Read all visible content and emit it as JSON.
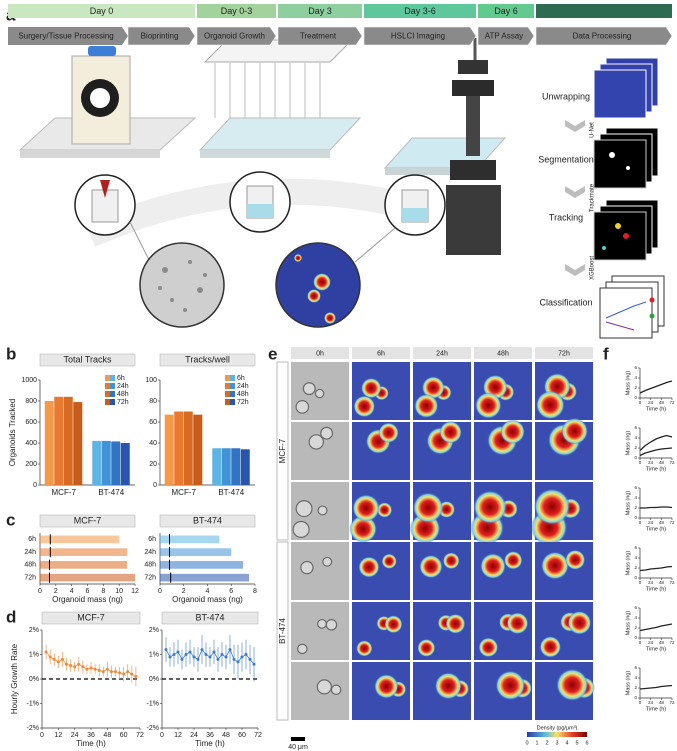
{
  "panel_a": {
    "label": "a",
    "days": [
      "Day 0",
      "Day 0-3",
      "Day 3",
      "Day 3-6",
      "Day 6"
    ],
    "steps": [
      "Surgery/Tissue Processing",
      "Bioprinting",
      "Organoid Growth",
      "Treatment",
      "HSLCI Imaging",
      "ATP Assay",
      "Data Processing"
    ],
    "workflow": [
      "Unwrapping",
      "Segmentation",
      "Tracking",
      "Classification"
    ],
    "models": [
      "U-Net",
      "Trackmate",
      "XGBoost"
    ]
  },
  "panel_labels": [
    "b",
    "c",
    "d",
    "e",
    "f"
  ],
  "panel_e": {
    "columns": [
      "0h",
      "6h",
      "24h",
      "48h",
      "72h"
    ],
    "rows": [
      "MCF-7",
      "BT-474"
    ],
    "scale_bar": "40 μm",
    "colorbar": {
      "title": "Density (pg/μm³)",
      "ticks": [
        0,
        1,
        2,
        3,
        4,
        5,
        6
      ]
    }
  },
  "chart_data": [
    {
      "type": "bar",
      "title": "Total Tracks",
      "ylabel": "Organoids Tracked",
      "categories": [
        "MCF-7",
        "BT-474"
      ],
      "series": [
        {
          "name": "6h",
          "colors": [
            "#f39a4a",
            "#5fb4e6"
          ],
          "values": [
            800,
            420
          ]
        },
        {
          "name": "24h",
          "colors": [
            "#e8792e",
            "#4193d6"
          ],
          "values": [
            840,
            420
          ]
        },
        {
          "name": "48h",
          "colors": [
            "#d96a22",
            "#3274c4"
          ],
          "values": [
            840,
            415
          ]
        },
        {
          "name": "72h",
          "colors": [
            "#c85c1a",
            "#2856ac"
          ],
          "values": [
            790,
            400
          ]
        }
      ],
      "ylim": [
        0,
        1000
      ],
      "yticks": [
        0,
        200,
        400,
        600,
        800,
        1000
      ]
    },
    {
      "type": "bar",
      "title": "Tracks/well",
      "categories": [
        "MCF-7",
        "BT-474"
      ],
      "series": [
        {
          "name": "6h",
          "colors": [
            "#f39a4a",
            "#5fb4e6"
          ],
          "values": [
            67,
            35
          ]
        },
        {
          "name": "24h",
          "colors": [
            "#e8792e",
            "#4193d6"
          ],
          "values": [
            70,
            35
          ]
        },
        {
          "name": "48h",
          "colors": [
            "#d96a22",
            "#3274c4"
          ],
          "values": [
            70,
            35
          ]
        },
        {
          "name": "72h",
          "colors": [
            "#c85c1a",
            "#2856ac"
          ],
          "values": [
            67,
            34
          ]
        }
      ],
      "ylim": [
        0,
        100
      ],
      "yticks": [
        0,
        20,
        40,
        60,
        80,
        100
      ]
    },
    {
      "type": "strip",
      "title": "MCF-7",
      "xlabel": "Organoid mass (ng)",
      "categories": [
        "6h",
        "24h",
        "48h",
        "72h"
      ],
      "colors": [
        "#f39a4a",
        "#e8792e",
        "#d96a22",
        "#c85c1a"
      ],
      "medians": [
        1.3,
        1.3,
        1.2,
        1.2
      ],
      "maxima": [
        10,
        11,
        11,
        12
      ],
      "xlim": [
        0,
        12
      ],
      "xticks": [
        0,
        2,
        4,
        6,
        8,
        10,
        12
      ]
    },
    {
      "type": "strip",
      "title": "BT-474",
      "xlabel": "Organoid mass (ng)",
      "categories": [
        "6h",
        "24h",
        "48h",
        "72h"
      ],
      "colors": [
        "#5fb4e6",
        "#4193d6",
        "#3274c4",
        "#2856ac"
      ],
      "medians": [
        0.8,
        0.8,
        0.8,
        0.9
      ],
      "maxima": [
        5,
        6,
        7,
        7.5
      ],
      "xlim": [
        0,
        8
      ],
      "xticks": [
        0,
        2,
        4,
        6,
        8
      ]
    },
    {
      "type": "line",
      "title": "MCF-7",
      "xlabel": "Time (h)",
      "ylabel": "Hourly Growth Rate",
      "zero_line": true,
      "x": [
        3,
        6,
        9,
        12,
        15,
        18,
        21,
        24,
        27,
        30,
        33,
        36,
        39,
        42,
        45,
        48,
        51,
        54,
        57,
        60,
        63,
        66,
        69
      ],
      "series": [
        {
          "color": "#ef8a3a",
          "values": [
            1.1,
            0.9,
            0.8,
            0.7,
            0.8,
            0.6,
            0.55,
            0.5,
            0.6,
            0.5,
            0.4,
            0.45,
            0.4,
            0.35,
            0.3,
            0.4,
            0.3,
            0.3,
            0.25,
            0.2,
            0.3,
            0.2,
            0.1
          ],
          "errors": [
            0.3,
            0.3,
            0.25,
            0.25,
            0.3,
            0.25,
            0.25,
            0.2,
            0.3,
            0.25,
            0.2,
            0.25,
            0.2,
            0.25,
            0.2,
            0.3,
            0.25,
            0.2,
            0.25,
            0.3,
            0.3,
            0.35,
            0.4
          ]
        }
      ],
      "xlim": [
        0,
        72
      ],
      "xticks": [
        0,
        12,
        24,
        36,
        48,
        60,
        72
      ],
      "ylim": [
        -2,
        2
      ],
      "yticks": [
        {
          "value": -2,
          "label": "-2%"
        },
        {
          "value": -1,
          "label": "-1%"
        },
        {
          "value": 0,
          "label": "0%"
        },
        {
          "value": 1,
          "label": "1%"
        },
        {
          "value": 2,
          "label": "2%"
        }
      ]
    },
    {
      "type": "line",
      "title": "BT-474",
      "xlabel": "Time (h)",
      "zero_line": true,
      "x": [
        3,
        6,
        9,
        12,
        15,
        18,
        21,
        24,
        27,
        30,
        33,
        36,
        39,
        42,
        45,
        48,
        51,
        54,
        57,
        60,
        63,
        66,
        69
      ],
      "series": [
        {
          "color": "#3d7cc9",
          "values": [
            1.2,
            0.9,
            1.0,
            1.1,
            0.8,
            1.0,
            1.1,
            0.9,
            0.8,
            1.2,
            1.0,
            0.9,
            1.1,
            0.8,
            1.0,
            0.9,
            1.2,
            0.8,
            0.7,
            0.9,
            1.0,
            0.8,
            0.6
          ],
          "errors": [
            0.5,
            0.4,
            0.5,
            0.5,
            0.4,
            0.5,
            0.5,
            0.4,
            0.5,
            0.6,
            0.5,
            0.4,
            0.5,
            0.5,
            0.5,
            0.5,
            0.6,
            0.6,
            0.7,
            0.6,
            0.6,
            0.6,
            0.7
          ]
        }
      ],
      "xlim": [
        0,
        72
      ],
      "xticks": [
        0,
        12,
        24,
        36,
        48,
        60,
        72
      ],
      "ylim": [
        -2,
        2
      ],
      "yticks": [
        {
          "value": -2,
          "label": "-2%"
        },
        {
          "value": -1,
          "label": "-1%"
        },
        {
          "value": 0,
          "label": "0%"
        },
        {
          "value": 1,
          "label": "1%"
        },
        {
          "value": 2,
          "label": "2%"
        }
      ]
    },
    {
      "type": "line",
      "xlabel": "Time (h)",
      "ylabel": "Mass (ng)",
      "x": [
        0,
        12,
        24,
        36,
        48,
        60,
        72
      ],
      "series": [
        {
          "color": "#222222",
          "values": [
            1.0,
            1.5,
            1.9,
            2.3,
            2.7,
            3.1,
            3.4
          ]
        }
      ],
      "xlim": [
        0,
        72
      ],
      "xticks": [
        0,
        24,
        48,
        72
      ],
      "ylim": [
        0,
        6
      ],
      "yticks": [
        0,
        2,
        4,
        6
      ]
    },
    {
      "type": "line",
      "xlabel": "Time (h)",
      "ylabel": "Mass (ng)",
      "x": [
        0,
        12,
        24,
        36,
        48,
        60,
        72
      ],
      "series": [
        {
          "color": "#222222",
          "values": [
            1.5,
            2.5,
            3.2,
            3.8,
            4.2,
            4.5,
            4.2
          ]
        },
        {
          "color": "#222222",
          "values": [
            0.5,
            1.0,
            1.3,
            1.6,
            1.8,
            1.9,
            2.0
          ]
        }
      ],
      "xlim": [
        0,
        72
      ],
      "xticks": [
        0,
        24,
        48,
        72
      ],
      "ylim": [
        0,
        6
      ],
      "yticks": [
        0,
        2,
        4,
        6
      ]
    },
    {
      "type": "line",
      "xlabel": "Time (h)",
      "ylabel": "Mass (ng)",
      "x": [
        0,
        12,
        24,
        36,
        48,
        60,
        72
      ],
      "series": [
        {
          "color": "#222222",
          "values": [
            2.0,
            2.0,
            2.1,
            2.1,
            2.2,
            2.2,
            2.1
          ]
        }
      ],
      "xlim": [
        0,
        72
      ],
      "xticks": [
        0,
        24,
        48,
        72
      ],
      "ylim": [
        0,
        6
      ],
      "yticks": [
        0,
        2,
        4,
        6
      ]
    },
    {
      "type": "line",
      "xlabel": "Time (h)",
      "ylabel": "Mass (ng)",
      "x": [
        0,
        12,
        24,
        36,
        48,
        60,
        72
      ],
      "series": [
        {
          "color": "#222222",
          "values": [
            1.5,
            1.6,
            1.8,
            1.9,
            2.0,
            2.2,
            2.3
          ]
        }
      ],
      "xlim": [
        0,
        72
      ],
      "xticks": [
        0,
        24,
        48,
        72
      ],
      "ylim": [
        0,
        6
      ],
      "yticks": [
        0,
        2,
        4,
        6
      ]
    },
    {
      "type": "line",
      "xlabel": "Time (h)",
      "ylabel": "Mass (ng)",
      "x": [
        0,
        12,
        24,
        36,
        48,
        60,
        72
      ],
      "series": [
        {
          "color": "#222222",
          "values": [
            1.5,
            1.7,
            1.9,
            2.1,
            2.4,
            2.6,
            2.8
          ]
        }
      ],
      "xlim": [
        0,
        72
      ],
      "xticks": [
        0,
        24,
        48,
        72
      ],
      "ylim": [
        0,
        6
      ],
      "yticks": [
        0,
        2,
        4,
        6
      ]
    },
    {
      "type": "line",
      "xlabel": "Time (h)",
      "ylabel": "Mass (ng)",
      "x": [
        0,
        12,
        24,
        36,
        48,
        60,
        72
      ],
      "series": [
        {
          "color": "#222222",
          "values": [
            1.8,
            1.9,
            2.0,
            2.1,
            2.3,
            2.4,
            2.5
          ]
        }
      ],
      "xlim": [
        0,
        72
      ],
      "xticks": [
        0,
        24,
        48,
        72
      ],
      "ylim": [
        0,
        6
      ],
      "yticks": [
        0,
        2,
        4,
        6
      ]
    }
  ]
}
